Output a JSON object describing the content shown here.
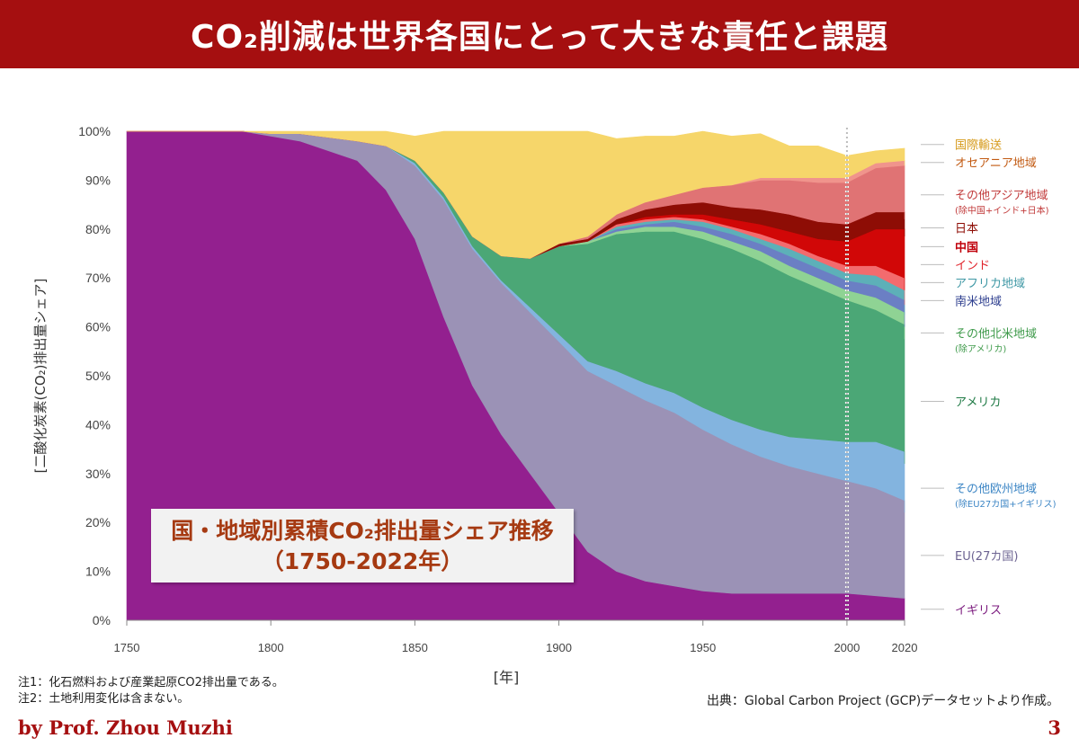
{
  "slide": {
    "title": "CO₂削減は世界各国にとって大きな責任と課題",
    "overlay_title": "国・地域別累積CO₂排出量シェア推移",
    "overlay_subtitle": "（1750-2022年）",
    "note1": "注1：化石燃料および産業起原CO2排出量である。",
    "note2": "注2：土地利用変化は含まない。",
    "source": "出典：Global Carbon Project (GCP)データセットより作成。",
    "byline": "by Prof. Zhou Muzhi",
    "page_number": "3"
  },
  "chart_data": {
    "type": "area",
    "stacked": true,
    "ylabel": "[二酸化炭素(CO₂)排出量シェア]",
    "xlabel": "[年]",
    "ylim": [
      0,
      100
    ],
    "yticks": [
      "0%",
      "10%",
      "20%",
      "30%",
      "40%",
      "50%",
      "60%",
      "70%",
      "80%",
      "90%",
      "100%"
    ],
    "xticks": [
      "1750",
      "1800",
      "1850",
      "1900",
      "1950",
      "2000",
      "2020"
    ],
    "marker_year": 2000,
    "x": [
      1750,
      1790,
      1800,
      1810,
      1830,
      1840,
      1850,
      1860,
      1870,
      1880,
      1890,
      1900,
      1910,
      1920,
      1930,
      1940,
      1950,
      1960,
      1970,
      1980,
      1990,
      2000,
      2010,
      2020,
      2022
    ],
    "series": [
      {
        "name": "イギリス",
        "color": "#93208f",
        "label_color": "#7b1a7e",
        "values": [
          100,
          100,
          99,
          98,
          94,
          88,
          78,
          62,
          48,
          38,
          30,
          22,
          14,
          10,
          8,
          7,
          6,
          5.5,
          5.5,
          5.5,
          5.5,
          5.5,
          5,
          4.5,
          4.5
        ]
      },
      {
        "name": "EU(27カ国)",
        "color": "#9b92b6",
        "label_color": "#6d6492",
        "values": [
          0,
          0,
          0.5,
          1.5,
          4,
          9,
          15,
          24,
          28,
          31,
          33,
          35,
          37,
          38,
          37,
          35.5,
          33,
          30.5,
          28,
          26,
          24.5,
          23,
          22,
          20,
          17.5
        ]
      },
      {
        "name": "その他欧州地域",
        "sub": "(除EU27カ国+イギリス)",
        "color": "#83b4df",
        "label_color": "#3d86c5",
        "values": [
          0,
          0,
          0,
          0,
          0,
          0,
          0.5,
          0.5,
          0.5,
          0.5,
          1,
          1.5,
          2,
          3,
          3.5,
          4,
          4.5,
          5,
          5.5,
          6,
          7,
          8,
          9.5,
          10,
          10
        ]
      },
      {
        "name": "アメリカ",
        "color": "#4ba776",
        "label_color": "#1f7a45",
        "values": [
          0,
          0,
          0,
          0,
          0,
          0,
          0.5,
          1,
          2,
          5,
          10,
          18,
          24,
          28,
          31,
          33,
          34.5,
          35,
          34.5,
          33,
          31,
          29,
          27,
          26,
          25.5
        ]
      },
      {
        "name": "その他北米地域",
        "sub": "(除アメリカ)",
        "color": "#8fd394",
        "label_color": "#3e9a4a",
        "values": [
          0,
          0,
          0,
          0,
          0,
          0,
          0,
          0,
          0,
          0,
          0,
          0,
          0.5,
          0.5,
          1,
          1,
          1.5,
          1.5,
          2,
          2,
          2,
          2,
          2.5,
          2.5,
          2.5
        ]
      },
      {
        "name": "南米地域",
        "color": "#6b7fc4",
        "label_color": "#2e3f8f",
        "values": [
          0,
          0,
          0,
          0,
          0,
          0,
          0,
          0,
          0,
          0,
          0,
          0,
          0,
          0.5,
          0.5,
          1,
          1,
          1.5,
          1.5,
          2,
          2,
          2,
          2.5,
          2.5,
          2.5
        ]
      },
      {
        "name": "アフリカ地域",
        "color": "#5db0b8",
        "label_color": "#3f98a5",
        "values": [
          0,
          0,
          0,
          0,
          0,
          0,
          0,
          0,
          0,
          0,
          0,
          0,
          0,
          0.5,
          0.5,
          0.5,
          1,
          1,
          1,
          1.5,
          1.5,
          1.5,
          2,
          2,
          2
        ]
      },
      {
        "name": "インド",
        "color": "#f36b6e",
        "label_color": "#e0222a",
        "values": [
          0,
          0,
          0,
          0,
          0,
          0,
          0,
          0,
          0,
          0,
          0,
          0,
          0,
          0.5,
          0.5,
          0.5,
          0.5,
          0.5,
          1,
          1,
          1,
          1.5,
          2,
          2.5,
          3
        ]
      },
      {
        "name": "中国",
        "color": "#d10707",
        "label_color": "#c0000b",
        "values": [
          0,
          0,
          0,
          0,
          0,
          0,
          0,
          0,
          0,
          0,
          0,
          0,
          0,
          0,
          0.5,
          0.5,
          1,
          1.5,
          2,
          2.5,
          3.5,
          5,
          7.5,
          10,
          11
        ]
      },
      {
        "name": "日本",
        "color": "#8e0d05",
        "label_color": "#8e0d05",
        "values": [
          0,
          0,
          0,
          0,
          0,
          0,
          0,
          0,
          0,
          0,
          0,
          0.5,
          0.5,
          1,
          1.5,
          2,
          2.5,
          2.5,
          3,
          3.5,
          3.5,
          3.5,
          3.5,
          3.5,
          3.5
        ]
      },
      {
        "name": "その他アジア地域",
        "sub": "(除中国+インド+日本)",
        "color": "#e07374",
        "label_color": "#c13a3a",
        "values": [
          0,
          0,
          0,
          0,
          0,
          0,
          0,
          0,
          0,
          0,
          0,
          0,
          0.5,
          1,
          1.5,
          2,
          3,
          4.5,
          6,
          7,
          8,
          8.5,
          9,
          9.5,
          10
        ]
      },
      {
        "name": "オセアニア地域",
        "color": "#f0948c",
        "label_color": "#c25a12",
        "values": [
          0,
          0,
          0,
          0,
          0,
          0,
          0,
          0,
          0,
          0,
          0,
          0,
          0,
          0,
          0,
          0,
          0,
          0,
          0.5,
          0.5,
          1,
          1,
          1,
          1,
          1
        ]
      },
      {
        "name": "国際輸送",
        "color": "#f6d66a",
        "label_color": "#d69a1a",
        "values": [
          0,
          0,
          0.5,
          0.5,
          2,
          3,
          5,
          12.5,
          21.5,
          25.5,
          26,
          23,
          21.5,
          15.5,
          13.5,
          12,
          11.5,
          10,
          9,
          6.5,
          6.5,
          4.5,
          2.5,
          2.5,
          2.5
        ]
      }
    ]
  }
}
